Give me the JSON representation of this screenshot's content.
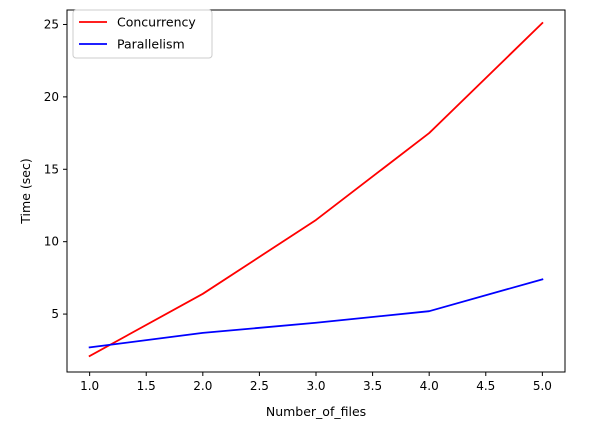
{
  "chart_data": {
    "type": "line",
    "title": "",
    "xlabel": "Number_of_files",
    "ylabel": "Time (sec)",
    "xlim": [
      0.8,
      5.2
    ],
    "ylim": [
      1.0,
      26.0
    ],
    "x": [
      1,
      2,
      3,
      4,
      5
    ],
    "xticks": [
      "1.0",
      "1.5",
      "2.0",
      "2.5",
      "3.0",
      "3.5",
      "4.0",
      "4.5",
      "5.0"
    ],
    "yticks": [
      "5",
      "10",
      "15",
      "20",
      "25"
    ],
    "grid": false,
    "legend_position": "top-left",
    "series": [
      {
        "name": "Concurrency",
        "color": "#ff0000",
        "values": [
          2.1,
          6.4,
          11.5,
          17.5,
          25.1
        ]
      },
      {
        "name": "Parallelism",
        "color": "#0000ff",
        "values": [
          2.7,
          3.7,
          4.4,
          5.2,
          7.4
        ]
      }
    ]
  }
}
